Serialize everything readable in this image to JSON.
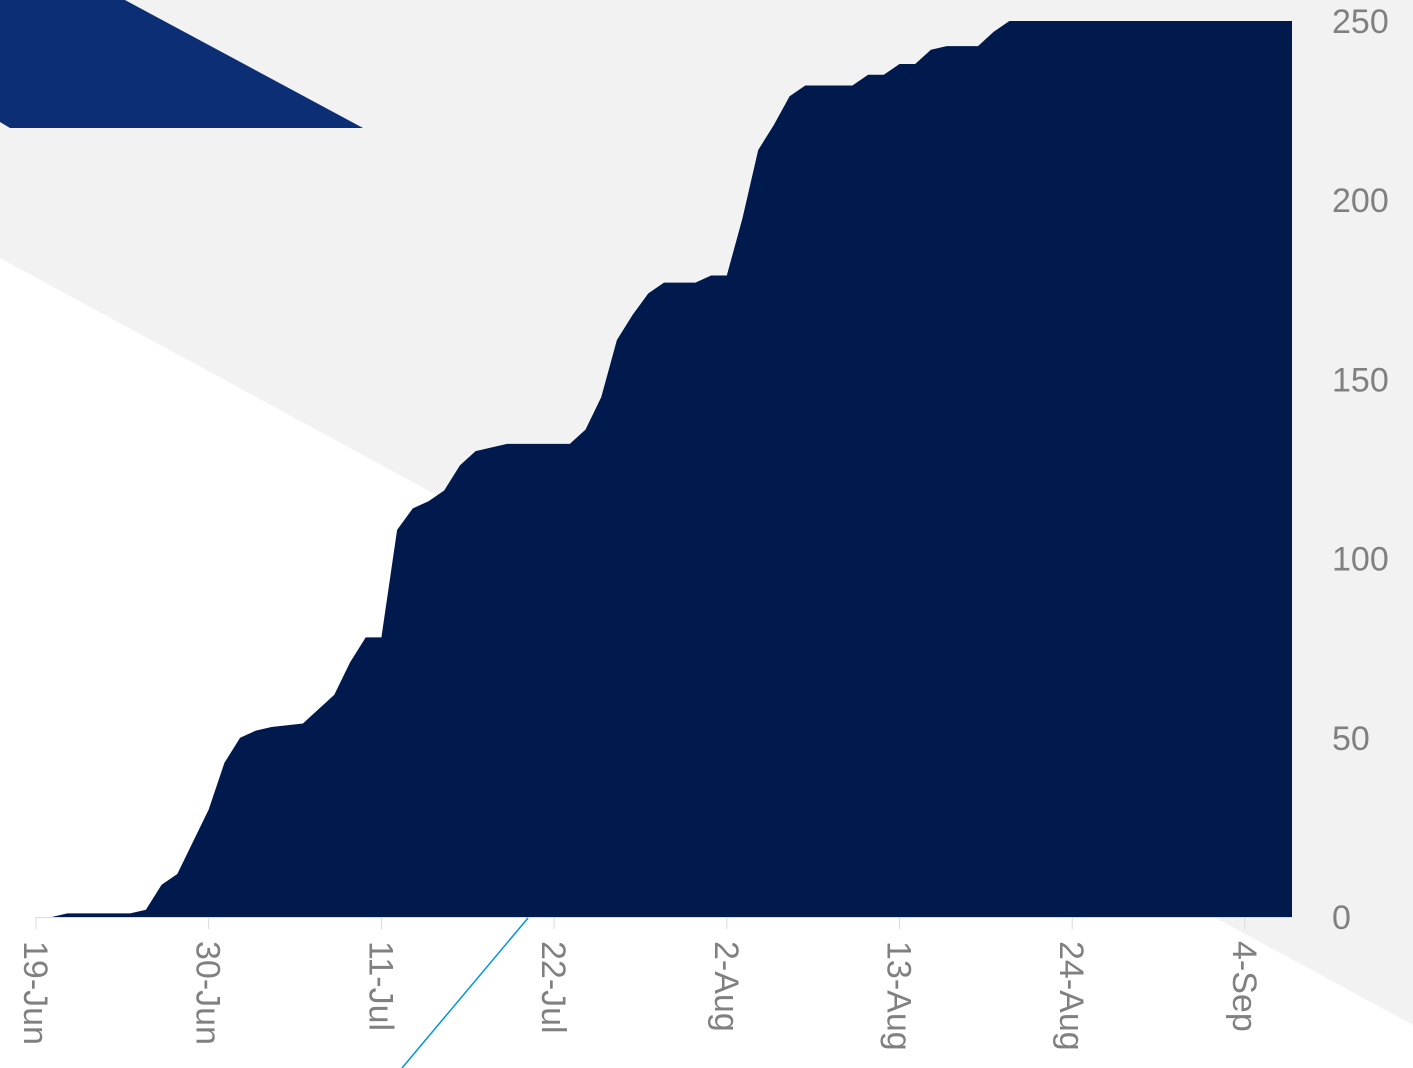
{
  "colors": {
    "area_fill": "#001a4d",
    "background_band": "#f2f2f2",
    "accent_shape": "#0c2e74",
    "accent_line": "#0096d6",
    "axis": "#d9d9d9",
    "tick_text": "#808080"
  },
  "chart_data": {
    "type": "area",
    "title": "",
    "xlabel": "",
    "ylabel": "",
    "ylim": [
      0,
      250
    ],
    "y_ticks": [
      0,
      50,
      100,
      150,
      200,
      250
    ],
    "y_axis_side": "right",
    "x_range": [
      "2020-06-19",
      "2020-09-07"
    ],
    "x_tick_labels": [
      {
        "date": "2020-06-19",
        "label": "19-Jun"
      },
      {
        "date": "2020-06-30",
        "label": "30-Jun"
      },
      {
        "date": "2020-07-11",
        "label": "11-Jul"
      },
      {
        "date": "2020-07-22",
        "label": "22-Jul"
      },
      {
        "date": "2020-08-02",
        "label": "2-Aug"
      },
      {
        "date": "2020-08-13",
        "label": "13-Aug"
      },
      {
        "date": "2020-08-24",
        "label": "24-Aug"
      },
      {
        "date": "2020-09-04",
        "label": "4-Sep"
      }
    ],
    "grid": false,
    "legend": "none",
    "series": [
      {
        "x": [
          "2020-06-20",
          "2020-06-21",
          "2020-06-22",
          "2020-06-23",
          "2020-06-24",
          "2020-06-25",
          "2020-06-26",
          "2020-06-27",
          "2020-06-28",
          "2020-06-29",
          "2020-06-30",
          "2020-07-01",
          "2020-07-02",
          "2020-07-03",
          "2020-07-04",
          "2020-07-05",
          "2020-07-06",
          "2020-07-07",
          "2020-07-08",
          "2020-07-09",
          "2020-07-10",
          "2020-07-11",
          "2020-07-12",
          "2020-07-13",
          "2020-07-14",
          "2020-07-15",
          "2020-07-16",
          "2020-07-17",
          "2020-07-18",
          "2020-07-19",
          "2020-07-20",
          "2020-07-21",
          "2020-07-22",
          "2020-07-23",
          "2020-07-24",
          "2020-07-25",
          "2020-07-26",
          "2020-07-27",
          "2020-07-28",
          "2020-07-29",
          "2020-07-30",
          "2020-07-31",
          "2020-08-01",
          "2020-08-02",
          "2020-08-03",
          "2020-08-04",
          "2020-08-05",
          "2020-08-06",
          "2020-08-07",
          "2020-08-08",
          "2020-08-09",
          "2020-08-10",
          "2020-08-11",
          "2020-08-12",
          "2020-08-13",
          "2020-08-14",
          "2020-08-15",
          "2020-08-16",
          "2020-08-17",
          "2020-08-18",
          "2020-08-19",
          "2020-08-20",
          "2020-08-21",
          "2020-08-22",
          "2020-08-23",
          "2020-08-24",
          "2020-08-25",
          "2020-08-26",
          "2020-08-27",
          "2020-08-28",
          "2020-08-29",
          "2020-08-30",
          "2020-08-31",
          "2020-09-01",
          "2020-09-02",
          "2020-09-03",
          "2020-09-04",
          "2020-09-05",
          "2020-09-06",
          "2020-09-07"
        ],
        "y": [
          0,
          1,
          1,
          1,
          1,
          1,
          2,
          9,
          12,
          21,
          30,
          43,
          50,
          52,
          53,
          53.5,
          54,
          58,
          62,
          71,
          78,
          78,
          108,
          114,
          116,
          119,
          126,
          130,
          131,
          132,
          132,
          132,
          132,
          132,
          136,
          145,
          161,
          168,
          174,
          177,
          177,
          177,
          179,
          179,
          195,
          214,
          221,
          229,
          232,
          232,
          232,
          232,
          235,
          235,
          238,
          238,
          242,
          243,
          243,
          243,
          247,
          250,
          250,
          250,
          250,
          250,
          250,
          250,
          250,
          250,
          250,
          250,
          250,
          250,
          250,
          250,
          250,
          250,
          250,
          250
        ]
      }
    ]
  }
}
